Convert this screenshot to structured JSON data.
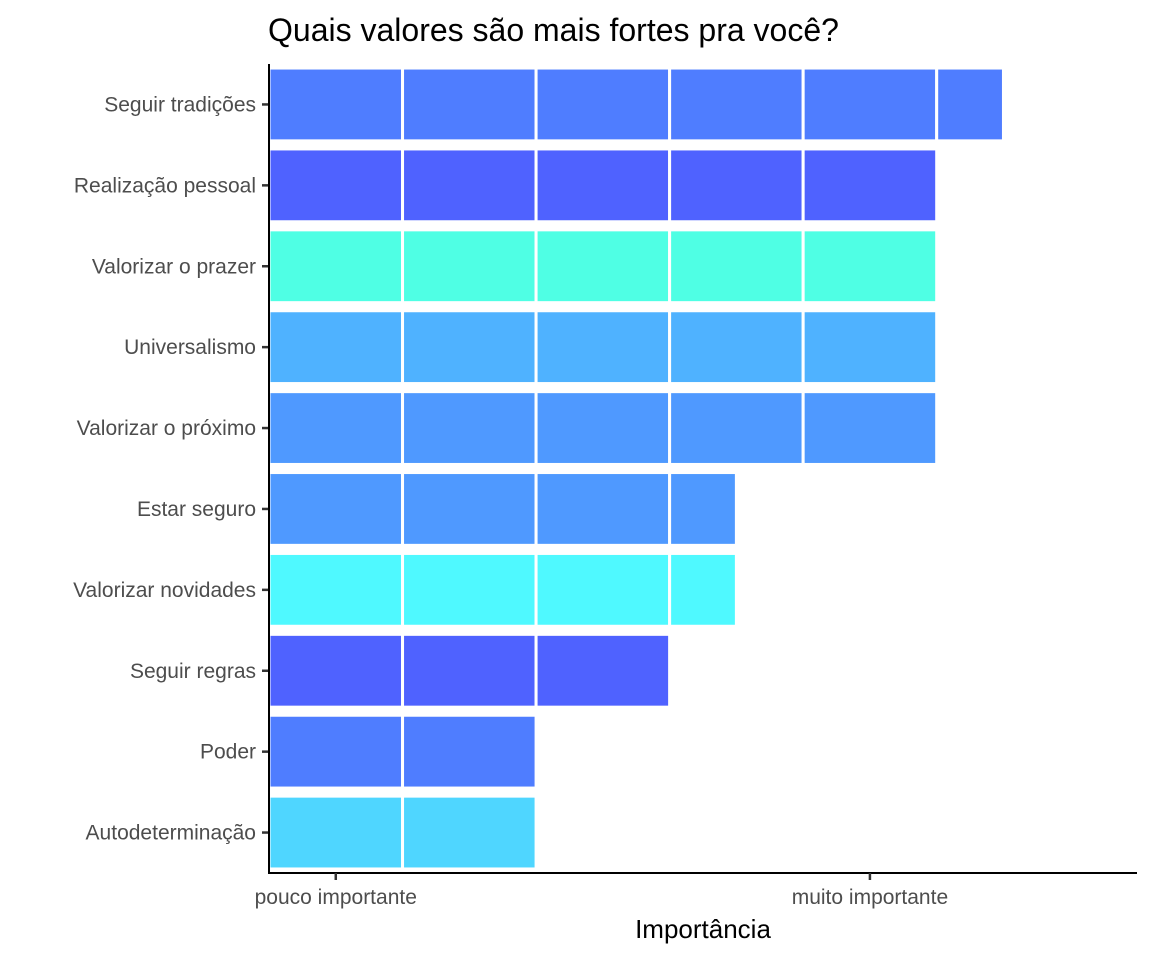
{
  "chart_data": {
    "type": "bar",
    "orientation": "horizontal",
    "stacked": true,
    "title": "Quais valores são mais fortes pra você?",
    "xlabel": "Importância",
    "ylabel": "",
    "xlim": [
      0.5,
      7.0
    ],
    "x_ticks": [
      {
        "value": 1,
        "label": "pouco importante"
      },
      {
        "value": 5,
        "label": "muito importante"
      }
    ],
    "grid": false,
    "legend": "none",
    "categories": [
      "Seguir tradições",
      "Realização pessoal",
      "Valorizar o prazer",
      "Universalismo",
      "Valorizar o próximo",
      "Estar seguro",
      "Valorizar novidades",
      "Seguir regras",
      "Poder",
      "Autodeterminação"
    ],
    "values": [
      5.5,
      5,
      5,
      5,
      5,
      3.5,
      3.5,
      3,
      2,
      2
    ],
    "colors": [
      "#4f7dff",
      "#4f62ff",
      "#4fffe4",
      "#4fb2ff",
      "#4f99ff",
      "#4f99ff",
      "#4ff9ff",
      "#4f62ff",
      "#4f7dff",
      "#4fd6ff"
    ]
  }
}
